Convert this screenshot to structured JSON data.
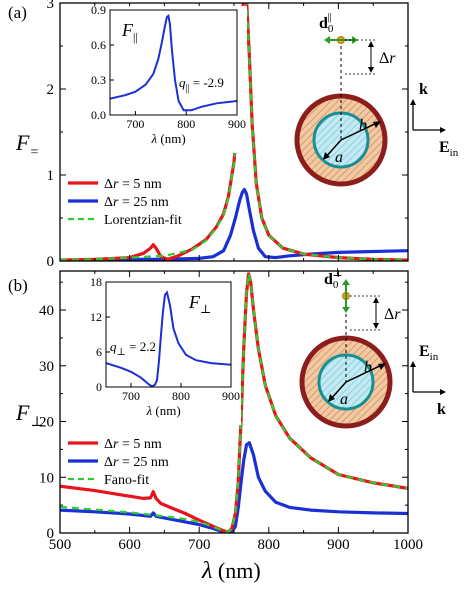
{
  "chart_data": [
    {
      "type": "line",
      "panel_label": "(a)",
      "ylabel": {
        "main": "F",
        "sub": "="
      },
      "xlim": [
        500,
        1000
      ],
      "ylim": [
        0,
        3
      ],
      "xticks": [
        500,
        600,
        700,
        800,
        900,
        1000
      ],
      "yticks": [
        0,
        1,
        2,
        3
      ],
      "ytick_labels": [
        "0",
        "1",
        "2",
        "3"
      ],
      "legend_position": "bottom-left",
      "series": [
        {
          "name": "Δr = 5 nm",
          "color": "#e8141b",
          "dash": false,
          "x": [
            500,
            550,
            600,
            620,
            630,
            634,
            638,
            645,
            655,
            670,
            690,
            710,
            725,
            735,
            742,
            750,
            756,
            760,
            764,
            766,
            768,
            772,
            776,
            782,
            790,
            800,
            820,
            850,
            900,
            950,
            1000
          ],
          "y": [
            0.01,
            0.02,
            0.04,
            0.09,
            0.15,
            0.19,
            0.15,
            0.05,
            0.02,
            0.06,
            0.14,
            0.25,
            0.4,
            0.55,
            0.75,
            1.15,
            1.8,
            2.5,
            3.1,
            3.2,
            3.05,
            2.4,
            1.6,
            0.9,
            0.5,
            0.3,
            0.15,
            0.08,
            0.04,
            0.02,
            0.01
          ]
        },
        {
          "name": "Δr = 25 nm",
          "color": "#1a2fd6",
          "dash": false,
          "x": [
            500,
            550,
            600,
            650,
            700,
            720,
            735,
            745,
            752,
            758,
            762,
            765,
            768,
            772,
            778,
            785,
            795,
            810,
            830,
            860,
            900,
            950,
            1000
          ],
          "y": [
            0.0,
            0.01,
            0.02,
            0.02,
            0.03,
            0.05,
            0.12,
            0.3,
            0.5,
            0.7,
            0.8,
            0.83,
            0.78,
            0.6,
            0.35,
            0.15,
            0.05,
            0.04,
            0.06,
            0.08,
            0.1,
            0.11,
            0.12
          ]
        },
        {
          "name": "Lorentzian-fit",
          "color": "#2ecc2e",
          "dash": true,
          "x": [
            500,
            550,
            600,
            650,
            690,
            710,
            725,
            735,
            742,
            750,
            756,
            760,
            764,
            766,
            768,
            772,
            776,
            782,
            790,
            800,
            820,
            850,
            900,
            950,
            1000
          ],
          "y": [
            0.01,
            0.02,
            0.04,
            0.06,
            0.13,
            0.24,
            0.39,
            0.54,
            0.74,
            1.14,
            1.78,
            2.48,
            3.08,
            3.18,
            3.03,
            2.38,
            1.58,
            0.89,
            0.5,
            0.3,
            0.15,
            0.08,
            0.04,
            0.02,
            0.01
          ]
        }
      ],
      "inset": {
        "label": {
          "main": "F",
          "sub": "||"
        },
        "annotation": {
          "main": "q",
          "sub": "||",
          "value": " = -2.9"
        },
        "xlabel": {
          "main": "λ",
          "unit": " (nm)"
        },
        "xlim": [
          650,
          900
        ],
        "ylim": [
          0,
          0.9
        ],
        "xticks": [
          700,
          800,
          900
        ],
        "yticks": [
          0,
          0.3,
          0.6,
          0.9
        ],
        "ytick_labels": [
          "0.0",
          "0.3",
          "0.6",
          "0.9"
        ],
        "series": {
          "color": "#1a2fd6",
          "x": [
            650,
            680,
            700,
            720,
            735,
            745,
            752,
            758,
            762,
            765,
            768,
            772,
            778,
            785,
            795,
            810,
            830,
            860,
            900
          ],
          "y": [
            0.14,
            0.17,
            0.2,
            0.26,
            0.35,
            0.48,
            0.62,
            0.76,
            0.84,
            0.85,
            0.78,
            0.55,
            0.3,
            0.12,
            0.04,
            0.04,
            0.07,
            0.1,
            0.12
          ]
        }
      },
      "schematic": {
        "dipole": {
          "main": "d",
          "sub": "0",
          "sup": "||"
        },
        "delta": "Δr",
        "radius_outer": "b",
        "radius_inner": "a",
        "k_label": "k",
        "e_label": {
          "main": "E",
          "sub": "in"
        }
      }
    },
    {
      "type": "line",
      "panel_label": "(b)",
      "ylabel": {
        "main": "F",
        "sub": "⊥"
      },
      "xlabel": {
        "main": "λ",
        "unit": " (nm)"
      },
      "xlim": [
        500,
        1000
      ],
      "ylim": [
        0,
        47
      ],
      "xticks": [
        500,
        600,
        700,
        800,
        900,
        1000
      ],
      "xtick_labels": [
        "500",
        "600",
        "700",
        "800",
        "900",
        "1000"
      ],
      "yticks": [
        0,
        10,
        20,
        30,
        40
      ],
      "ytick_labels": [
        "0",
        "10",
        "20",
        "30",
        "40"
      ],
      "legend_position": "bottom-left",
      "series": [
        {
          "name": "Δr = 5 nm",
          "color": "#e8141b",
          "dash": false,
          "x": [
            500,
            550,
            600,
            620,
            630,
            634,
            638,
            645,
            660,
            680,
            700,
            720,
            735,
            742,
            747,
            752,
            756,
            760,
            764,
            768,
            771,
            774,
            778,
            785,
            795,
            810,
            830,
            860,
            900,
            950,
            1000
          ],
          "y": [
            8.4,
            7.6,
            6.6,
            6.2,
            6.3,
            7.4,
            6.2,
            5.3,
            4.5,
            3.5,
            2.3,
            1.2,
            0.4,
            0.2,
            0.8,
            3.5,
            9,
            20,
            33,
            43,
            46.5,
            45,
            40,
            33,
            26.5,
            21,
            17,
            13.5,
            10.5,
            9,
            8
          ]
        },
        {
          "name": "Δr = 25 nm",
          "color": "#1a2fd6",
          "dash": false,
          "x": [
            500,
            550,
            600,
            630,
            634,
            638,
            650,
            680,
            700,
            720,
            735,
            742,
            748,
            752,
            756,
            760,
            764,
            768,
            772,
            778,
            785,
            795,
            810,
            830,
            860,
            900,
            950,
            1000
          ],
          "y": [
            4.1,
            3.8,
            3.4,
            3.0,
            3.6,
            3.0,
            2.7,
            2.0,
            1.5,
            0.8,
            0.2,
            0.1,
            0.4,
            1.2,
            4.5,
            9,
            13,
            15.8,
            16.2,
            14,
            10,
            7.5,
            5.5,
            4.6,
            4.1,
            3.8,
            3.6,
            3.5
          ]
        },
        {
          "name": "Fano-fit",
          "color": "#2ecc2e",
          "dash": true,
          "x": [
            500,
            550,
            600,
            650,
            680,
            700,
            720,
            735,
            742,
            747,
            752,
            756,
            760,
            764,
            768,
            771,
            774,
            778,
            785,
            795,
            810,
            830,
            860,
            900,
            950,
            1000
          ],
          "y": [
            4.7,
            4.2,
            3.7,
            3.0,
            2.5,
            2.0,
            1.1,
            0.4,
            0.2,
            0.8,
            3.5,
            9,
            20,
            33,
            43,
            46.5,
            45,
            40,
            33,
            26.5,
            21,
            17,
            13.5,
            10.5,
            9,
            8
          ]
        }
      ],
      "inset": {
        "label": {
          "main": "F",
          "sub": "⊥"
        },
        "annotation": {
          "main": "q",
          "sub": "⊥",
          "value": " = 2.2"
        },
        "xlabel": {
          "main": "λ",
          "unit": " (nm)"
        },
        "xlim": [
          650,
          900
        ],
        "ylim": [
          0,
          18
        ],
        "xticks": [
          700,
          800,
          900
        ],
        "yticks": [
          0,
          6,
          12,
          18
        ],
        "ytick_labels": [
          "0",
          "6",
          "12",
          "18"
        ],
        "series": {
          "color": "#1a2fd6",
          "x": [
            650,
            680,
            700,
            720,
            735,
            742,
            748,
            752,
            756,
            760,
            764,
            768,
            772,
            778,
            785,
            795,
            810,
            830,
            860,
            900
          ],
          "y": [
            4.1,
            3.3,
            2.6,
            1.6,
            0.5,
            0.1,
            0.4,
            1.2,
            4.5,
            9,
            13,
            15.8,
            16.2,
            14,
            10,
            7.5,
            5.5,
            4.6,
            4.1,
            3.8
          ]
        }
      },
      "schematic": {
        "dipole": {
          "main": "d",
          "sub": "0",
          "sup": "⊥"
        },
        "delta": "Δr",
        "radius_outer": "b",
        "radius_inner": "a",
        "k_label": "k",
        "e_label": {
          "main": "E",
          "sub": "in"
        }
      }
    }
  ]
}
